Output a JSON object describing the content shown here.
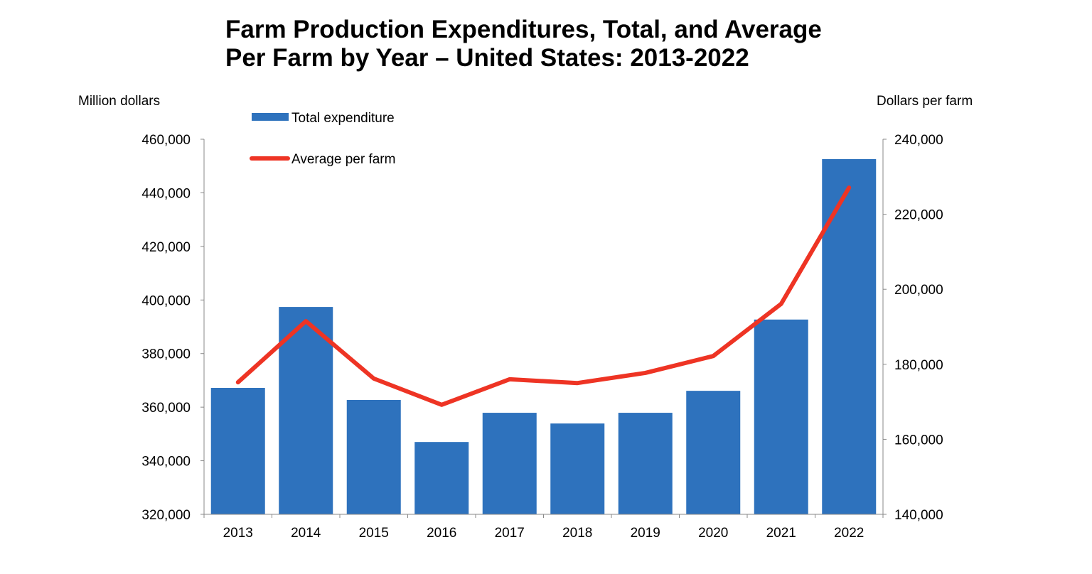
{
  "chart_data": {
    "type": "bar+line",
    "title_line1": "Farm Production Expenditures, Total, and Average",
    "title_line2": "Per Farm by Year – United States: 2013-2022",
    "ylabel_left": "Million dollars",
    "ylabel_right": "Dollars per farm",
    "categories": [
      "2013",
      "2014",
      "2015",
      "2016",
      "2017",
      "2018",
      "2019",
      "2020",
      "2021",
      "2022"
    ],
    "ylim_left": [
      320000,
      460000
    ],
    "ylim_right": [
      140000,
      240000
    ],
    "yticks_left": [
      "320,000",
      "340,000",
      "360,000",
      "380,000",
      "400,000",
      "420,000",
      "440,000",
      "460,000"
    ],
    "yticks_right": [
      "140,000",
      "160,000",
      "180,000",
      "200,000",
      "220,000",
      "240,000"
    ],
    "grid": false,
    "legend_placement": "top-left",
    "series": [
      {
        "name": "Total expenditure",
        "type": "bar",
        "axis": "left",
        "color": "#2E72BD",
        "values": [
          367200,
          397400,
          362700,
          347000,
          357900,
          353900,
          357900,
          366100,
          392700,
          452600
        ]
      },
      {
        "name": "Average per farm",
        "type": "line",
        "axis": "right",
        "color": "#EE3424",
        "values": [
          175200,
          191500,
          176200,
          169200,
          176000,
          175000,
          177700,
          182200,
          196100,
          227100
        ]
      }
    ]
  }
}
